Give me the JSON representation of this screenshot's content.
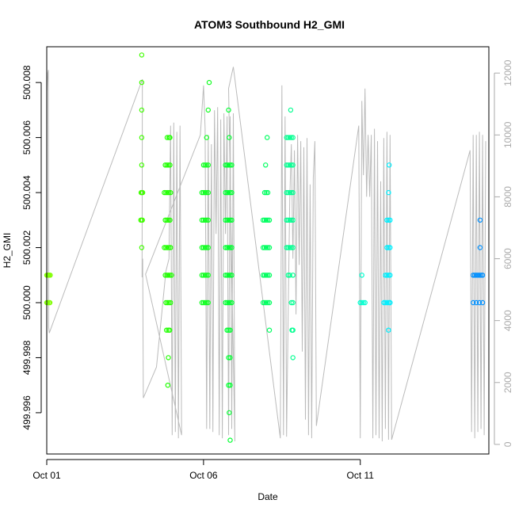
{
  "chart_data": {
    "type": "scatter",
    "title": "ATOM3 Southbound H2_GMI",
    "xlabel": "Date",
    "ylabel": "H2_GMI",
    "x_range": [
      0.0,
      14.1
    ],
    "ylim": [
      499.9945,
      500.0093
    ],
    "y2lim": [
      -310,
      12850
    ],
    "x_ticks": [
      {
        "value": 0.0,
        "label": "Oct 01"
      },
      {
        "value": 5.0,
        "label": "Oct 06"
      },
      {
        "value": 10.0,
        "label": "Oct 11"
      }
    ],
    "y_ticks": [
      {
        "value": 499.996,
        "label": "499.996"
      },
      {
        "value": 499.998,
        "label": "499.998"
      },
      {
        "value": 500.0,
        "label": "500.000"
      },
      {
        "value": 500.002,
        "label": "500.002"
      },
      {
        "value": 500.004,
        "label": "500.004"
      },
      {
        "value": 500.006,
        "label": "500.006"
      },
      {
        "value": 500.008,
        "label": "500.008"
      }
    ],
    "y2_ticks": [
      {
        "value": 0,
        "label": "0"
      },
      {
        "value": 2000,
        "label": "2000"
      },
      {
        "value": 4000,
        "label": "4000"
      },
      {
        "value": 6000,
        "label": "6000"
      },
      {
        "value": 8000,
        "label": "8000"
      },
      {
        "value": 10000,
        "label": "10000"
      },
      {
        "value": 12000,
        "label": "12000"
      }
    ],
    "series": [
      {
        "color": "#80ff00",
        "x": [
          0.0,
          0.02,
          0.05,
          0.08,
          0.11,
          0.0,
          0.03,
          0.07,
          0.1
        ],
        "y": [
          500.001,
          500.001,
          500.001,
          500.001,
          500.001,
          500.0,
          500.0,
          500.0,
          500.0
        ]
      },
      {
        "color": "#40ff00",
        "x": [
          3.03,
          3.03,
          3.03,
          3.03,
          3.03,
          3.03,
          3.03,
          3.03,
          3.01,
          3.06,
          3.0,
          3.05
        ],
        "y": [
          500.009,
          500.008,
          500.007,
          500.006,
          500.005,
          500.004,
          500.003,
          500.002,
          500.004,
          500.004,
          500.003,
          500.003
        ]
      },
      {
        "color": "#20ff00",
        "x": [
          3.75,
          3.8,
          3.85,
          3.9,
          3.95,
          3.78,
          3.83,
          3.88,
          3.93,
          3.98,
          3.8,
          3.85,
          3.9,
          3.95,
          3.78,
          3.83,
          3.88,
          3.93,
          3.75,
          3.8,
          3.85,
          3.9,
          3.95,
          3.78,
          3.83,
          3.88,
          3.93,
          3.82,
          3.88,
          3.92,
          3.84,
          3.9,
          3.88,
          3.86,
          3.93
        ],
        "y": [
          500.002,
          500.002,
          500.002,
          500.002,
          500.002,
          500.001,
          500.001,
          500.001,
          500.001,
          500.001,
          500.0,
          500.0,
          500.0,
          500.0,
          500.003,
          500.003,
          500.003,
          500.003,
          500.004,
          500.004,
          500.004,
          500.004,
          500.004,
          500.005,
          500.005,
          500.005,
          500.005,
          499.999,
          499.999,
          499.999,
          500.006,
          500.006,
          499.998,
          499.997,
          500.006
        ]
      },
      {
        "color": "#10ff20",
        "x": [
          4.95,
          5.0,
          5.05,
          5.1,
          5.15,
          4.95,
          5.0,
          5.05,
          5.1,
          5.15,
          4.95,
          5.0,
          5.05,
          5.1,
          5.15,
          4.95,
          5.0,
          5.05,
          5.1,
          5.15,
          4.95,
          5.0,
          5.05,
          5.1,
          5.15,
          5.0,
          5.05,
          5.1,
          5.15,
          5.1,
          5.15,
          5.18
        ],
        "y": [
          500.0,
          500.0,
          500.0,
          500.0,
          500.0,
          500.001,
          500.001,
          500.001,
          500.001,
          500.001,
          500.002,
          500.002,
          500.002,
          500.002,
          500.002,
          500.003,
          500.003,
          500.003,
          500.003,
          500.003,
          500.004,
          500.004,
          500.004,
          500.004,
          500.004,
          500.005,
          500.005,
          500.005,
          500.005,
          500.006,
          500.007,
          500.008
        ]
      },
      {
        "color": "#00ff30",
        "x": [
          5.7,
          5.75,
          5.8,
          5.85,
          5.9,
          5.7,
          5.75,
          5.8,
          5.85,
          5.9,
          5.7,
          5.75,
          5.8,
          5.85,
          5.9,
          5.7,
          5.75,
          5.8,
          5.85,
          5.9,
          5.7,
          5.75,
          5.8,
          5.85,
          5.9,
          5.7,
          5.75,
          5.8,
          5.85,
          5.9,
          5.75,
          5.8,
          5.85,
          5.8,
          5.85,
          5.8,
          5.85,
          5.82,
          5.85,
          5.82,
          5.8
        ],
        "y": [
          500.0,
          500.0,
          500.0,
          500.0,
          500.0,
          500.001,
          500.001,
          500.001,
          500.001,
          500.001,
          500.002,
          500.002,
          500.002,
          500.002,
          500.002,
          500.003,
          500.003,
          500.003,
          500.003,
          500.003,
          500.004,
          500.004,
          500.004,
          500.004,
          500.004,
          500.005,
          500.005,
          500.005,
          500.005,
          500.005,
          499.999,
          499.999,
          499.999,
          499.998,
          499.998,
          499.997,
          499.997,
          499.996,
          499.995,
          500.006,
          500.007
        ]
      },
      {
        "color": "#00ff60",
        "x": [
          6.9,
          6.95,
          7.0,
          7.05,
          7.1,
          6.9,
          6.95,
          7.0,
          7.05,
          7.1,
          6.9,
          6.95,
          7.0,
          7.05,
          7.1,
          6.9,
          6.95,
          7.0,
          7.05,
          7.1,
          6.95,
          7.0,
          7.05,
          6.98,
          7.03,
          7.1
        ],
        "y": [
          500.0,
          500.0,
          500.0,
          500.0,
          500.0,
          500.001,
          500.001,
          500.001,
          500.001,
          500.001,
          500.002,
          500.002,
          500.002,
          500.002,
          500.002,
          500.003,
          500.003,
          500.003,
          500.003,
          500.003,
          500.004,
          500.004,
          500.004,
          500.005,
          500.006,
          499.999
        ]
      },
      {
        "color": "#00ff90",
        "x": [
          7.65,
          7.7,
          7.75,
          7.8,
          7.85,
          7.65,
          7.7,
          7.75,
          7.8,
          7.85,
          7.65,
          7.7,
          7.75,
          7.8,
          7.85,
          7.65,
          7.7,
          7.75,
          7.8,
          7.85,
          7.65,
          7.7,
          7.75,
          7.8,
          7.85,
          7.7,
          7.75,
          7.8,
          7.85,
          7.78,
          7.85,
          7.85,
          7.85,
          7.82
        ],
        "y": [
          500.002,
          500.002,
          500.002,
          500.002,
          500.002,
          500.003,
          500.003,
          500.003,
          500.003,
          500.003,
          500.004,
          500.004,
          500.004,
          500.004,
          500.004,
          500.005,
          500.005,
          500.005,
          500.005,
          500.005,
          500.006,
          500.006,
          500.006,
          500.006,
          500.006,
          500.001,
          500.001,
          500.0,
          499.999,
          500.007,
          499.998,
          500.0,
          500.001,
          499.999
        ]
      },
      {
        "color": "#00ffd0",
        "x": [
          10.0,
          10.05,
          10.1,
          10.15,
          10.05
        ],
        "y": [
          500.0,
          500.0,
          500.0,
          500.0,
          500.001
        ]
      },
      {
        "color": "#00f0ff",
        "x": [
          10.75,
          10.8,
          10.85,
          10.9,
          10.95,
          10.8,
          10.85,
          10.9,
          10.95,
          10.85,
          10.9,
          10.95,
          10.85,
          10.9,
          10.95,
          10.9,
          10.92,
          10.95,
          10.9
        ],
        "y": [
          500.0,
          500.0,
          500.0,
          500.0,
          500.0,
          500.001,
          500.001,
          500.001,
          500.001,
          500.002,
          500.002,
          500.002,
          500.003,
          500.003,
          500.003,
          500.004,
          500.005,
          500.0,
          499.999
        ]
      },
      {
        "color": "#0090ff",
        "x": [
          13.6,
          13.65,
          13.7,
          13.75,
          13.8,
          13.85,
          13.9,
          13.6,
          13.7,
          13.8,
          13.82,
          13.82,
          13.9
        ],
        "y": [
          500.001,
          500.001,
          500.001,
          500.001,
          500.001,
          500.001,
          500.001,
          500.0,
          500.0,
          500.0,
          500.002,
          500.003,
          500.0
        ]
      }
    ],
    "secondary_line": {
      "color": "#bbbbbb",
      "x": [
        0.0,
        0.01,
        0.03,
        0.05,
        0.06,
        0.08,
        3.05,
        3.04,
        3.06,
        3.08,
        3.5,
        3.8,
        3.9,
        3.95,
        4.0,
        4.05,
        4.1,
        4.15,
        4.2,
        4.25,
        4.3,
        3.15,
        4.9,
        5.0,
        5.05,
        5.1,
        5.15,
        5.2,
        5.25,
        5.3,
        5.35,
        5.4,
        5.45,
        5.5,
        5.55,
        5.6,
        5.65,
        5.7,
        5.75,
        5.8,
        5.85,
        5.9,
        5.95,
        6.0,
        5.8,
        5.95,
        7.45,
        7.5,
        7.55,
        7.6,
        7.65,
        7.7,
        7.75,
        7.8,
        7.85,
        7.9,
        7.95,
        8.0,
        8.05,
        8.1,
        8.15,
        8.2,
        8.25,
        8.3,
        8.35,
        8.4,
        8.45,
        8.5,
        8.55,
        8.6,
        9.95,
        10.0,
        10.05,
        10.1,
        10.15,
        10.2,
        10.25,
        10.3,
        10.35,
        10.4,
        10.45,
        10.5,
        10.55,
        10.6,
        10.65,
        10.7,
        10.75,
        10.8,
        10.85,
        10.9,
        10.95,
        11.0,
        13.5,
        13.55,
        13.6,
        13.65,
        13.7,
        13.75,
        13.8,
        13.85,
        13.9,
        13.95,
        14.0
      ],
      "y": [
        0,
        11400,
        12000,
        12100,
        3800,
        3600,
        11800,
        5400,
        6000,
        1500,
        2500,
        5600,
        6000,
        10300,
        300,
        10400,
        400,
        10100,
        200,
        10300,
        300,
        5500,
        10000,
        11600,
        10200,
        500,
        10000,
        500,
        9700,
        400,
        10800,
        6800,
        10900,
        300,
        10500,
        200,
        10700,
        6800,
        10600,
        300,
        10600,
        500,
        10700,
        100,
        11500,
        12200,
        200,
        11600,
        300,
        10600,
        250,
        4200,
        7900,
        9700,
        6000,
        9500,
        4200,
        10000,
        5800,
        9800,
        3000,
        9600,
        800,
        9900,
        300,
        8400,
        200,
        8600,
        9800,
        600,
        10300,
        200,
        11100,
        8700,
        11500,
        8000,
        10000,
        8000,
        10000,
        200,
        10200,
        300,
        9800,
        200,
        8500,
        100,
        9900,
        500,
        10100,
        150,
        10000,
        150,
        9500,
        400,
        10000,
        200,
        10000,
        400,
        10100,
        500,
        10000,
        300,
        9800
      ]
    }
  }
}
